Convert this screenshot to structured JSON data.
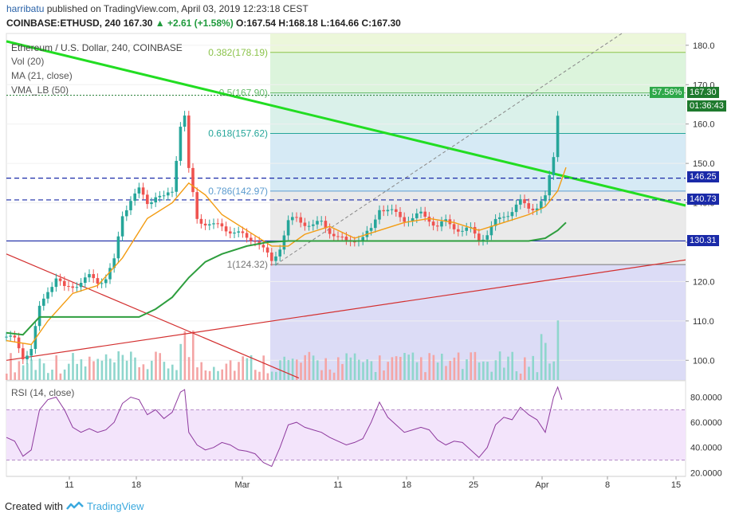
{
  "header": {
    "user": "harribatu",
    "published": "published on TradingView.com, April 03, 2019 12:23:18 CEST",
    "symbol": "COINBASE:ETHUSD, 240",
    "last": "167.30",
    "change": "▲ +2.61 (+1.58%)",
    "ohlc": "O:167.54 H:168.18 L:164.66 C:167.30"
  },
  "legend": {
    "title": "Ethereum / U.S. Dollar, 240, COINBASE",
    "vol": "Vol (20)",
    "ma": "MA (21, close)",
    "vma": "VMA_LB (50)",
    "rsi": "RSI (14, close)"
  },
  "badges": {
    "pct": "57.56%",
    "price": "167.30",
    "timer": "01:36:43",
    "l1": "146.25",
    "l2": "140.73",
    "l3": "130.31"
  },
  "footer": {
    "created": "Created with",
    "brand": "TradingView"
  },
  "colors": {
    "up": "#26a69a",
    "down": "#ef5350",
    "trend": "#22dd22",
    "ma": "#f39c12",
    "vma": "#2e9e3e",
    "level": "#1a2aa8",
    "rsi": "#8e3a9e"
  },
  "chart_data": {
    "type": "candlestick",
    "price_axis": {
      "min": 95,
      "max": 183,
      "ticks": [
        100,
        110,
        120,
        130,
        140,
        150,
        160,
        170,
        180
      ]
    },
    "rsi_axis": {
      "min": 17,
      "max": 93,
      "ticks": [
        20,
        40,
        60,
        80
      ],
      "labels": [
        "20.0000",
        "40.0000",
        "60.0000",
        "80.0000"
      ],
      "bands": [
        30,
        70
      ]
    },
    "x_ticks": [
      "11",
      "18",
      "Mar",
      "11",
      "18",
      "25",
      "Apr",
      "8",
      "15"
    ],
    "fib_levels": [
      {
        "label": "0.382(178.19)",
        "value": 178.19
      },
      {
        "label": "0.5(167.90)",
        "value": 167.9
      },
      {
        "label": "0.618(157.62)",
        "value": 157.62
      },
      {
        "label": "0.786(142.97)",
        "value": 142.97
      },
      {
        "label": "1(124.32)",
        "value": 124.32
      }
    ],
    "horizontal_levels": [
      146.25,
      140.73,
      130.31
    ],
    "last_price": 167.3,
    "close_path": [
      [
        0,
        106
      ],
      [
        2,
        105
      ],
      [
        4,
        101
      ],
      [
        6,
        103
      ],
      [
        8,
        113
      ],
      [
        10,
        118
      ],
      [
        12,
        121
      ],
      [
        14,
        118
      ],
      [
        16,
        119
      ],
      [
        18,
        120
      ],
      [
        20,
        121
      ],
      [
        22,
        120
      ],
      [
        24,
        121
      ],
      [
        26,
        125
      ],
      [
        28,
        137
      ],
      [
        30,
        141
      ],
      [
        32,
        143
      ],
      [
        34,
        140
      ],
      [
        36,
        142
      ],
      [
        38,
        141
      ],
      [
        40,
        143
      ],
      [
        42,
        160
      ],
      [
        43,
        162
      ],
      [
        44,
        148
      ],
      [
        46,
        136
      ],
      [
        48,
        135
      ],
      [
        50,
        134
      ],
      [
        52,
        134
      ],
      [
        54,
        133
      ],
      [
        56,
        132
      ],
      [
        58,
        131
      ],
      [
        60,
        131
      ],
      [
        62,
        128
      ],
      [
        64,
        125
      ],
      [
        66,
        129
      ],
      [
        68,
        135
      ],
      [
        70,
        136
      ],
      [
        72,
        135
      ],
      [
        74,
        134
      ],
      [
        76,
        135
      ],
      [
        78,
        133
      ],
      [
        80,
        131
      ],
      [
        82,
        130
      ],
      [
        84,
        131
      ],
      [
        86,
        131
      ],
      [
        88,
        133
      ],
      [
        90,
        139
      ],
      [
        92,
        138
      ],
      [
        94,
        137
      ],
      [
        96,
        136
      ],
      [
        98,
        136
      ],
      [
        100,
        137
      ],
      [
        102,
        136
      ],
      [
        104,
        134
      ],
      [
        106,
        135
      ],
      [
        108,
        134
      ],
      [
        110,
        133
      ],
      [
        112,
        133
      ],
      [
        114,
        131
      ],
      [
        116,
        132
      ],
      [
        118,
        135
      ],
      [
        120,
        137
      ],
      [
        122,
        138
      ],
      [
        124,
        140
      ],
      [
        126,
        139
      ],
      [
        128,
        139
      ],
      [
        130,
        141
      ],
      [
        132,
        152
      ],
      [
        133,
        163
      ],
      [
        134,
        167
      ]
    ],
    "ma_path": [
      [
        0,
        105
      ],
      [
        6,
        104
      ],
      [
        10,
        110
      ],
      [
        16,
        117
      ],
      [
        22,
        119
      ],
      [
        28,
        126
      ],
      [
        34,
        136
      ],
      [
        40,
        140
      ],
      [
        44,
        145
      ],
      [
        48,
        142
      ],
      [
        52,
        137
      ],
      [
        58,
        133
      ],
      [
        64,
        129
      ],
      [
        68,
        129
      ],
      [
        72,
        132
      ],
      [
        78,
        134
      ],
      [
        84,
        131
      ],
      [
        90,
        133
      ],
      [
        96,
        135
      ],
      [
        102,
        136
      ],
      [
        108,
        135
      ],
      [
        114,
        133
      ],
      [
        120,
        135
      ],
      [
        126,
        137
      ],
      [
        130,
        139
      ],
      [
        133,
        143
      ],
      [
        135,
        149
      ]
    ],
    "vma_path": [
      [
        0,
        107
      ],
      [
        4,
        106.5
      ],
      [
        8,
        111
      ],
      [
        14,
        111
      ],
      [
        24,
        111
      ],
      [
        32,
        111
      ],
      [
        36,
        113
      ],
      [
        40,
        116
      ],
      [
        44,
        121
      ],
      [
        48,
        125
      ],
      [
        52,
        127
      ],
      [
        58,
        129
      ],
      [
        63,
        130
      ],
      [
        68,
        130.31
      ],
      [
        80,
        130.31
      ],
      [
        100,
        130.31
      ],
      [
        112,
        130.31
      ],
      [
        120,
        130.31
      ],
      [
        126,
        130.31
      ],
      [
        130,
        131
      ],
      [
        133,
        133
      ],
      [
        135,
        135
      ]
    ],
    "rsi_path": [
      [
        0,
        48
      ],
      [
        2,
        45
      ],
      [
        4,
        33
      ],
      [
        6,
        38
      ],
      [
        8,
        70
      ],
      [
        10,
        78
      ],
      [
        12,
        80
      ],
      [
        14,
        70
      ],
      [
        16,
        56
      ],
      [
        18,
        52
      ],
      [
        20,
        55
      ],
      [
        22,
        52
      ],
      [
        24,
        54
      ],
      [
        26,
        60
      ],
      [
        28,
        75
      ],
      [
        30,
        80
      ],
      [
        32,
        78
      ],
      [
        34,
        66
      ],
      [
        36,
        70
      ],
      [
        38,
        63
      ],
      [
        40,
        68
      ],
      [
        42,
        84
      ],
      [
        43,
        86
      ],
      [
        44,
        52
      ],
      [
        46,
        42
      ],
      [
        48,
        38
      ],
      [
        50,
        40
      ],
      [
        52,
        44
      ],
      [
        54,
        42
      ],
      [
        56,
        38
      ],
      [
        58,
        37
      ],
      [
        60,
        35
      ],
      [
        62,
        28
      ],
      [
        64,
        25
      ],
      [
        66,
        40
      ],
      [
        68,
        58
      ],
      [
        70,
        60
      ],
      [
        72,
        56
      ],
      [
        74,
        54
      ],
      [
        76,
        52
      ],
      [
        78,
        48
      ],
      [
        80,
        45
      ],
      [
        82,
        42
      ],
      [
        84,
        44
      ],
      [
        86,
        47
      ],
      [
        88,
        60
      ],
      [
        90,
        76
      ],
      [
        92,
        64
      ],
      [
        94,
        58
      ],
      [
        96,
        52
      ],
      [
        98,
        54
      ],
      [
        100,
        56
      ],
      [
        102,
        54
      ],
      [
        104,
        46
      ],
      [
        106,
        42
      ],
      [
        108,
        45
      ],
      [
        110,
        44
      ],
      [
        112,
        38
      ],
      [
        114,
        32
      ],
      [
        116,
        40
      ],
      [
        118,
        58
      ],
      [
        120,
        64
      ],
      [
        122,
        62
      ],
      [
        124,
        72
      ],
      [
        126,
        66
      ],
      [
        128,
        62
      ],
      [
        130,
        52
      ],
      [
        132,
        80
      ],
      [
        133,
        88
      ],
      [
        134,
        78
      ]
    ]
  }
}
